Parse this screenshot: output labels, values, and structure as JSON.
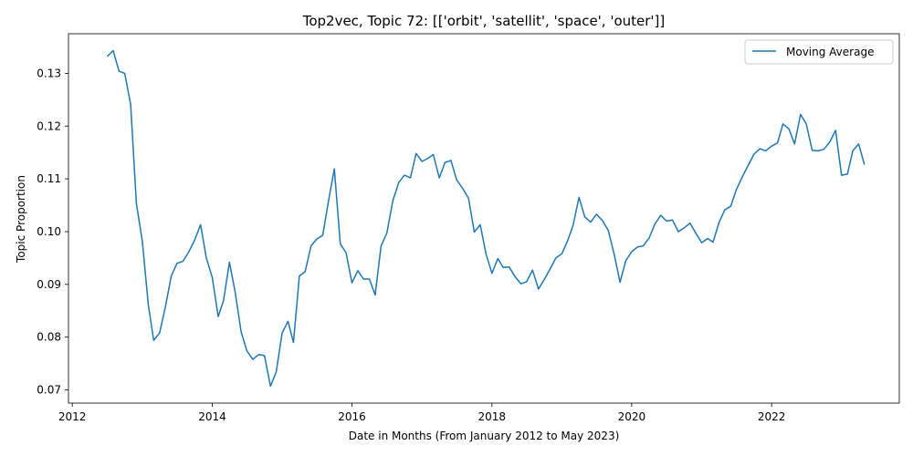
{
  "chart_data": {
    "type": "line",
    "title": "Top2vec, Topic 72: [['orbit', 'satellit', 'space', 'outer']]",
    "xlabel": "Date in Months (From January 2012 to May 2023)",
    "ylabel": "Topic Proportion",
    "xlim": [
      "2011-12-12",
      "2023-10-30"
    ],
    "ylim": [
      0.0675,
      0.1375
    ],
    "x_ticks": [
      "2012",
      "2014",
      "2016",
      "2018",
      "2020",
      "2022"
    ],
    "x_tick_dates": [
      "2012-01-01",
      "2014-01-01",
      "2016-01-01",
      "2018-01-01",
      "2020-01-01",
      "2022-01-01"
    ],
    "y_ticks": [
      "0.07",
      "0.08",
      "0.09",
      "0.10",
      "0.11",
      "0.12",
      "0.13"
    ],
    "y_tick_values": [
      0.07,
      0.08,
      0.09,
      0.1,
      0.11,
      0.12,
      0.13
    ],
    "grid": false,
    "legend_position": "top-right",
    "line_color": "#1f77b4",
    "series": [
      {
        "name": "Moving Average",
        "x": [
          "2012-07",
          "2012-08",
          "2012-09",
          "2012-10",
          "2012-11",
          "2012-12",
          "2013-01",
          "2013-02",
          "2013-03",
          "2013-04",
          "2013-05",
          "2013-06",
          "2013-07",
          "2013-08",
          "2013-09",
          "2013-10",
          "2013-11",
          "2013-12",
          "2014-01",
          "2014-02",
          "2014-03",
          "2014-04",
          "2014-05",
          "2014-06",
          "2014-07",
          "2014-08",
          "2014-09",
          "2014-10",
          "2014-11",
          "2014-12",
          "2015-01",
          "2015-02",
          "2015-03",
          "2015-04",
          "2015-05",
          "2015-06",
          "2015-07",
          "2015-08",
          "2015-09",
          "2015-10",
          "2015-11",
          "2015-12",
          "2016-01",
          "2016-02",
          "2016-03",
          "2016-04",
          "2016-05",
          "2016-06",
          "2016-07",
          "2016-08",
          "2016-09",
          "2016-10",
          "2016-11",
          "2016-12",
          "2017-01",
          "2017-02",
          "2017-03",
          "2017-04",
          "2017-05",
          "2017-06",
          "2017-07",
          "2017-08",
          "2017-09",
          "2017-10",
          "2017-11",
          "2017-12",
          "2018-01",
          "2018-02",
          "2018-03",
          "2018-04",
          "2018-05",
          "2018-06",
          "2018-07",
          "2018-08",
          "2018-09",
          "2018-10",
          "2018-11",
          "2018-12",
          "2019-01",
          "2019-02",
          "2019-03",
          "2019-04",
          "2019-05",
          "2019-06",
          "2019-07",
          "2019-08",
          "2019-09",
          "2019-10",
          "2019-11",
          "2019-12",
          "2020-01",
          "2020-02",
          "2020-03",
          "2020-04",
          "2020-05",
          "2020-06",
          "2020-07",
          "2020-08",
          "2020-09",
          "2020-10",
          "2020-11",
          "2020-12",
          "2021-01",
          "2021-02",
          "2021-03",
          "2021-04",
          "2021-05",
          "2021-06",
          "2021-07",
          "2021-08",
          "2021-09",
          "2021-10",
          "2021-11",
          "2021-12",
          "2022-01",
          "2022-02",
          "2022-03",
          "2022-04",
          "2022-05",
          "2022-06",
          "2022-07",
          "2022-08",
          "2022-09",
          "2022-10",
          "2022-11",
          "2022-12",
          "2023-01",
          "2023-02",
          "2023-03",
          "2023-04",
          "2023-05"
        ],
        "values": [
          0.1332,
          0.1343,
          0.1304,
          0.13,
          0.1241,
          0.1053,
          0.0982,
          0.0862,
          0.0794,
          0.0808,
          0.0857,
          0.0916,
          0.094,
          0.0944,
          0.0962,
          0.0984,
          0.1013,
          0.095,
          0.0913,
          0.0839,
          0.0869,
          0.0942,
          0.0885,
          0.081,
          0.0774,
          0.0758,
          0.0767,
          0.0765,
          0.0707,
          0.0734,
          0.0808,
          0.083,
          0.079,
          0.0916,
          0.0924,
          0.0973,
          0.0986,
          0.0993,
          0.106,
          0.1119,
          0.0977,
          0.096,
          0.0903,
          0.0926,
          0.091,
          0.091,
          0.088,
          0.0973,
          0.0997,
          0.1058,
          0.1093,
          0.1107,
          0.1102,
          0.1148,
          0.1133,
          0.1139,
          0.1146,
          0.1102,
          0.1131,
          0.1135,
          0.1098,
          0.1082,
          0.1063,
          0.0999,
          0.1013,
          0.0958,
          0.0921,
          0.0949,
          0.0932,
          0.0933,
          0.0915,
          0.0901,
          0.0905,
          0.0927,
          0.0891,
          0.0909,
          0.0929,
          0.095,
          0.0958,
          0.0983,
          0.1012,
          0.1065,
          0.1028,
          0.1018,
          0.1033,
          0.1021,
          0.1002,
          0.0958,
          0.0904,
          0.0945,
          0.0962,
          0.0971,
          0.0973,
          0.0988,
          0.1014,
          0.1031,
          0.102,
          0.1022,
          0.1,
          0.1007,
          0.1016,
          0.0997,
          0.0979,
          0.0987,
          0.098,
          0.1017,
          0.1041,
          0.1048,
          0.108,
          0.1104,
          0.1126,
          0.1147,
          0.1157,
          0.1153,
          0.1162,
          0.1168,
          0.1204,
          0.1195,
          0.1166,
          0.1222,
          0.1204,
          0.1154,
          0.1153,
          0.1156,
          0.117,
          0.1192,
          0.1107,
          0.1109,
          0.1153,
          0.1166,
          0.1127
        ]
      }
    ]
  }
}
